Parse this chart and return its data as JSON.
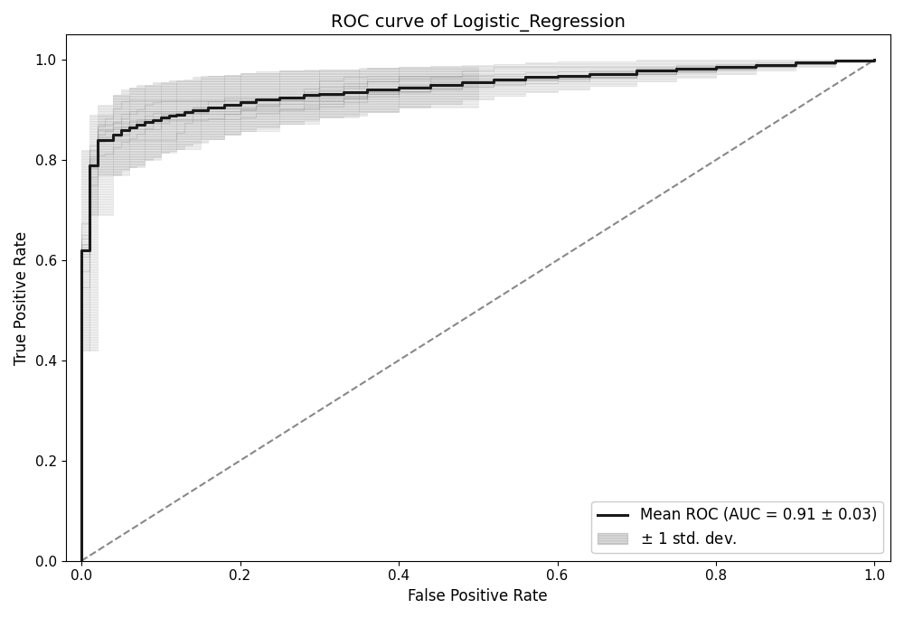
{
  "title": "ROC curve of Logistic_Regression",
  "xlabel": "False Positive Rate",
  "ylabel": "True Positive Rate",
  "xlim": [
    -0.02,
    1.02
  ],
  "ylim": [
    0.0,
    1.05
  ],
  "auc_mean": 0.91,
  "auc_std": 0.03,
  "mean_roc_color": "#1a1a1a",
  "std_fill_color": "#b0b0b0",
  "std_fill_alpha": 0.2,
  "diagonal_color": "#888888",
  "legend_loc": "lower right",
  "title_fontsize": 14,
  "label_fontsize": 12,
  "tick_fontsize": 11,
  "figsize": [
    10.0,
    6.84
  ],
  "dpi": 100,
  "n_folds": 10
}
